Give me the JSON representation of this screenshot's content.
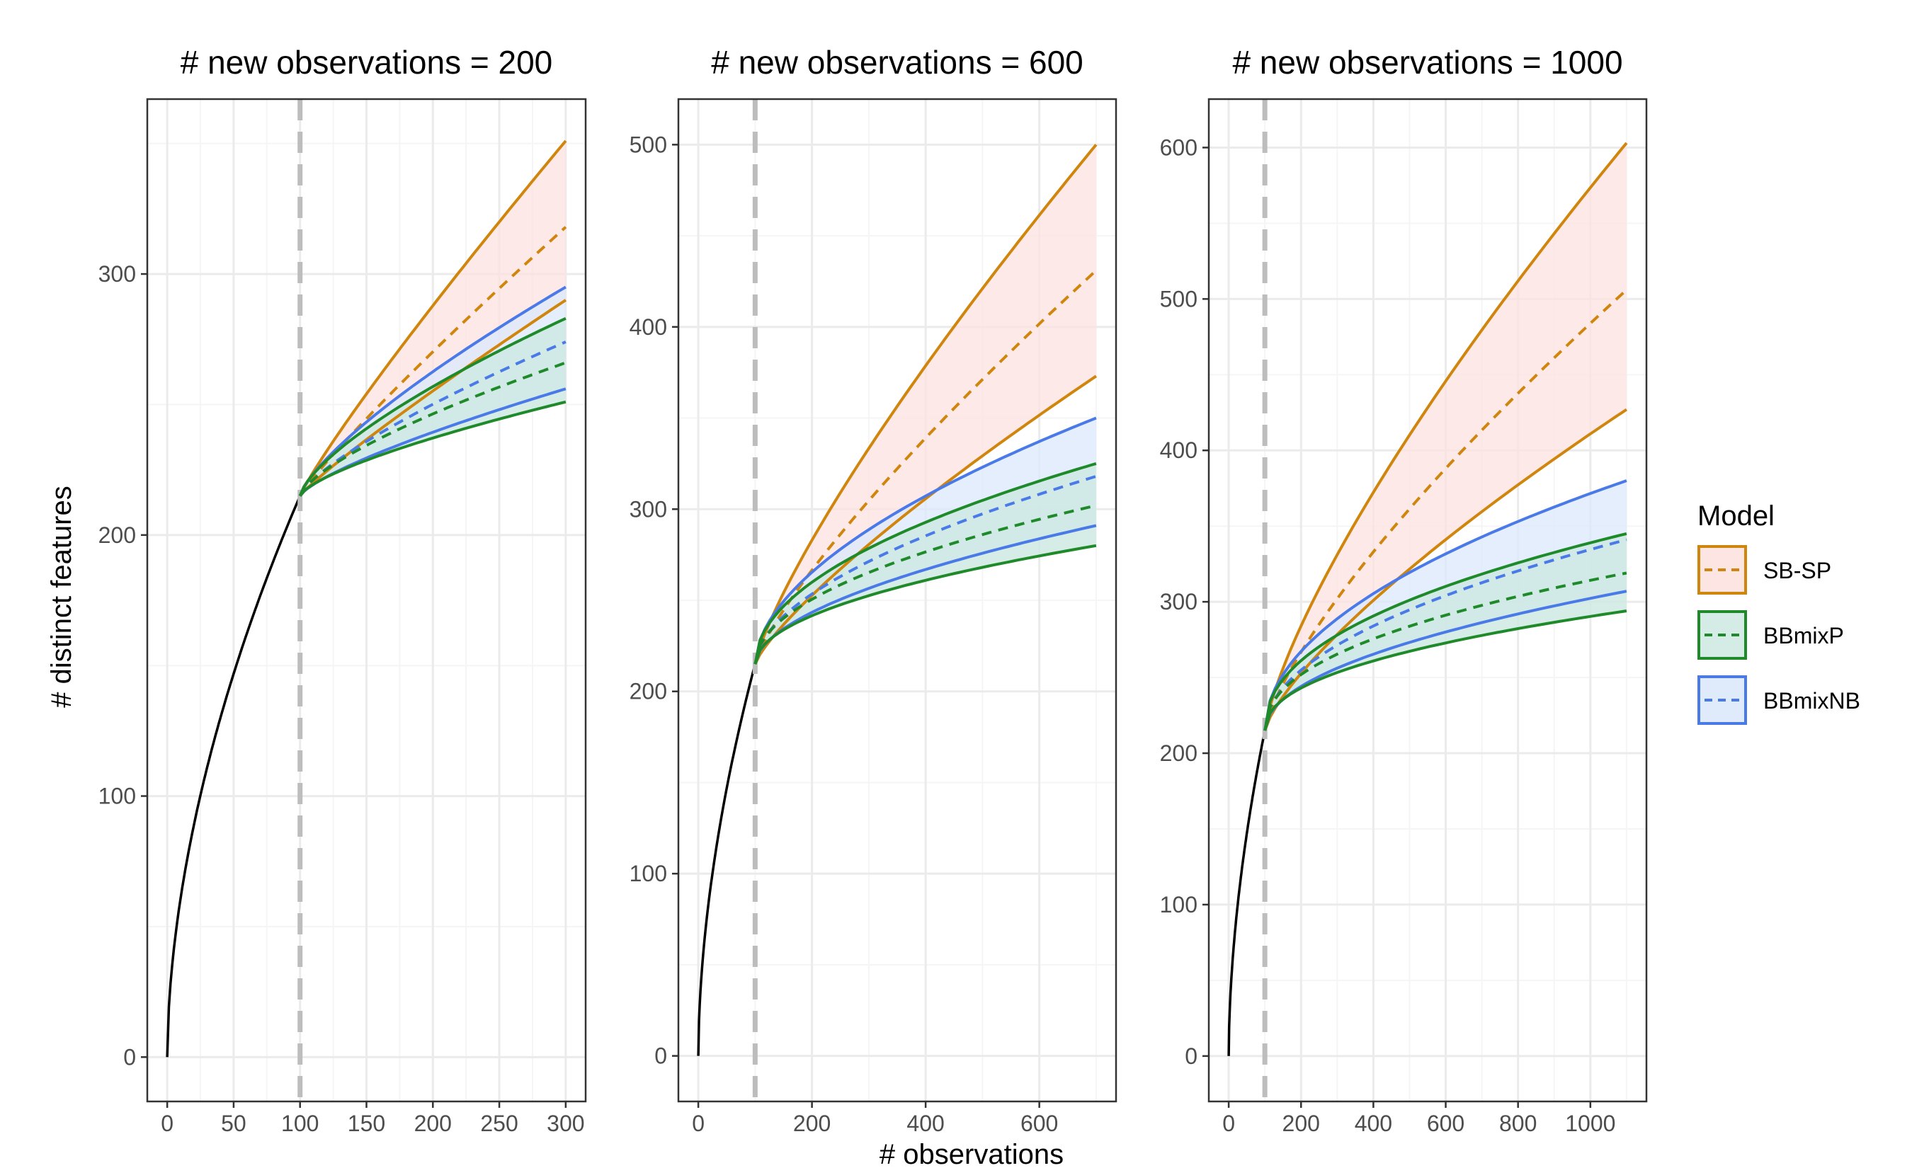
{
  "colors": {
    "observed": "#000000",
    "SB-SP": "#d0860d",
    "BBmixP": "#1f8a2a",
    "BBmixNB": "#4a7ae8",
    "SB-SP_fill": "#fde2e1",
    "BBmixP_fill": "#cfe9e3",
    "BBmixNB_fill": "#dbe8fb",
    "vline": "#bdbdbd",
    "grid_major": "#ebebeb",
    "grid_minor": "#f5f5f5",
    "panel_border": "#333333"
  },
  "labels": {
    "xlabel": "# observations",
    "ylabel": "# distinct features"
  },
  "legend": {
    "title": "Model",
    "placement": "right",
    "entries": [
      {
        "name": "SB-SP",
        "color_key": "SB-SP",
        "fill_key": "SB-SP_fill"
      },
      {
        "name": "BBmixP",
        "color_key": "BBmixP",
        "fill_key": "BBmixP_fill"
      },
      {
        "name": "BBmixNB",
        "color_key": "BBmixNB",
        "fill_key": "BBmixNB_fill"
      }
    ]
  },
  "chart_data": [
    {
      "type": "line",
      "title": "# new observations = 200",
      "xlim": [
        -15,
        315
      ],
      "ylim": [
        -17,
        367
      ],
      "xticks": [
        0,
        50,
        100,
        150,
        200,
        250,
        300
      ],
      "yticks": [
        0,
        100,
        200,
        300
      ],
      "vline_x": 100,
      "grid": true,
      "observed": {
        "n0": 100,
        "y0": 215,
        "exp": 0.55
      },
      "series": [
        {
          "name": "SB-SP",
          "x_end": 300,
          "lower": 290,
          "mean": 318,
          "upper": 351,
          "curve": 0.9
        },
        {
          "name": "BBmixNB",
          "x_end": 300,
          "lower": 256,
          "mean": 274,
          "upper": 295,
          "curve": 0.75
        },
        {
          "name": "BBmixP",
          "x_end": 300,
          "lower": 251,
          "mean": 266,
          "upper": 283,
          "curve": 0.7
        }
      ]
    },
    {
      "type": "line",
      "title": "# new observations = 600",
      "xlim": [
        -35,
        735
      ],
      "ylim": [
        -25,
        525
      ],
      "xticks": [
        0,
        200,
        400,
        600
      ],
      "yticks": [
        0,
        100,
        200,
        300,
        400,
        500
      ],
      "vline_x": 100,
      "grid": true,
      "observed": {
        "n0": 100,
        "y0": 215,
        "exp": 0.55
      },
      "series": [
        {
          "name": "SB-SP",
          "x_end": 700,
          "lower": 373,
          "mean": 431,
          "upper": 500,
          "curve": 0.8
        },
        {
          "name": "BBmixNB",
          "x_end": 700,
          "lower": 291,
          "mean": 318,
          "upper": 350,
          "curve": 0.55
        },
        {
          "name": "BBmixP",
          "x_end": 700,
          "lower": 280,
          "mean": 302,
          "upper": 325,
          "curve": 0.5
        }
      ]
    },
    {
      "type": "line",
      "title": "# new observations = 1000",
      "xlim": [
        -55,
        1155
      ],
      "ylim": [
        -30,
        632
      ],
      "xticks": [
        0,
        200,
        400,
        600,
        800,
        1000
      ],
      "yticks": [
        0,
        100,
        200,
        300,
        400,
        500,
        600
      ],
      "vline_x": 100,
      "grid": true,
      "observed": {
        "n0": 100,
        "y0": 215,
        "exp": 0.55
      },
      "series": [
        {
          "name": "SB-SP",
          "x_end": 1100,
          "lower": 427,
          "mean": 506,
          "upper": 603,
          "curve": 0.75
        },
        {
          "name": "BBmixNB",
          "x_end": 1100,
          "lower": 307,
          "mean": 341,
          "upper": 380,
          "curve": 0.5
        },
        {
          "name": "BBmixP",
          "x_end": 1100,
          "lower": 294,
          "mean": 319,
          "upper": 345,
          "curve": 0.45
        }
      ]
    }
  ]
}
